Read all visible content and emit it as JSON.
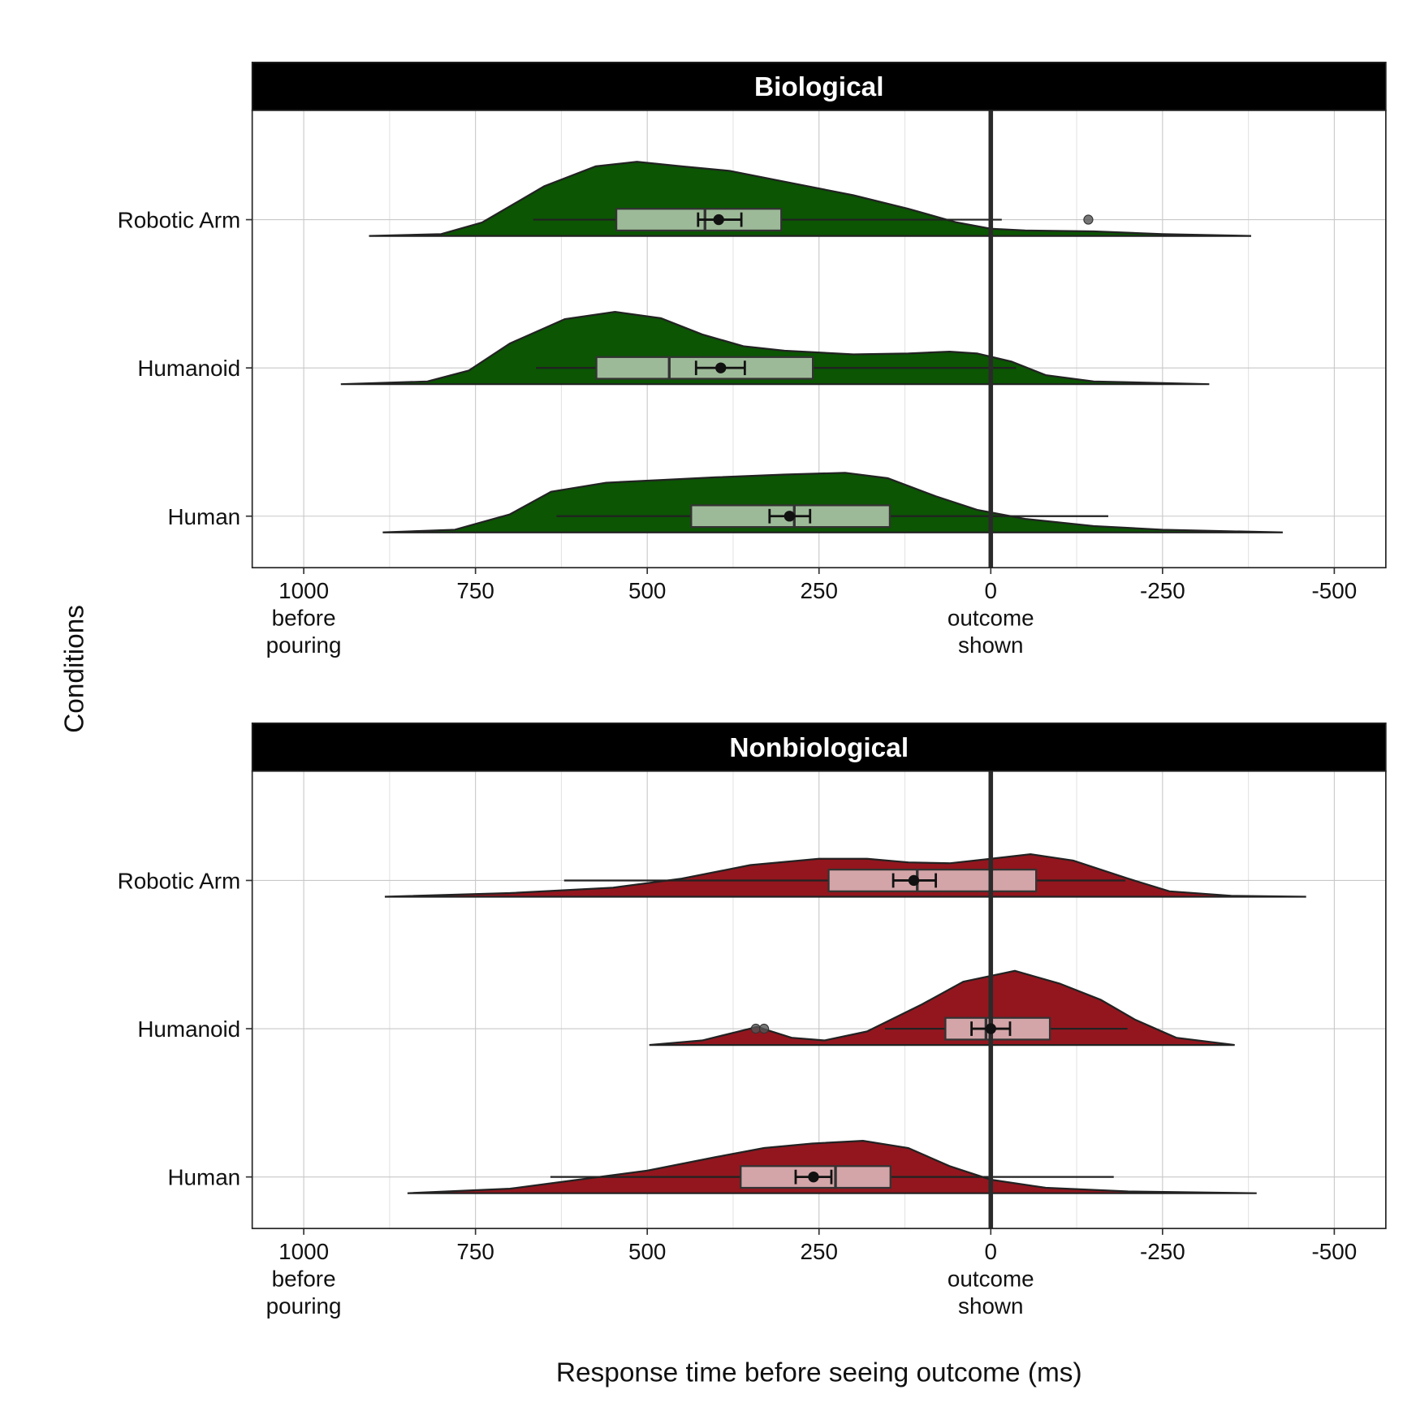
{
  "axis_labels": {
    "x": "Response time before seeing outcome (ms)",
    "y": "Conditions"
  },
  "chart_data": [
    {
      "type": "raincloud",
      "title": "Biological",
      "categories": [
        "Robotic Arm",
        "Humanoid",
        "Human"
      ],
      "fill": "#0b5503",
      "box_fill": "#9dba98",
      "xlim": [
        1075,
        -575
      ],
      "vline": 0,
      "grid": true,
      "xticks": [
        {
          "value": 1000,
          "label": "1000\nbefore\npouring"
        },
        750,
        500,
        250,
        {
          "value": 0,
          "label": "0\noutcome\nshown"
        },
        -250,
        -500
      ],
      "groups": [
        {
          "density_x": [
            905,
            800,
            740,
            650,
            575,
            515,
            450,
            380,
            300,
            200,
            120,
            50,
            0,
            -50,
            -150,
            -250,
            -379
          ],
          "density": [
            0,
            2,
            15,
            55,
            77,
            82,
            77,
            72,
            60,
            45,
            30,
            15,
            8,
            6,
            5,
            2,
            0
          ],
          "whisker_low": -16,
          "q1": 305,
          "median": 416,
          "q3": 545,
          "whisker_high": 666,
          "mean": 396,
          "mean_low": 363,
          "mean_high": 426,
          "outliers": [
            -142
          ]
        },
        {
          "density_x": [
            946,
            820,
            760,
            700,
            620,
            547,
            480,
            420,
            360,
            300,
            200,
            120,
            60,
            20,
            -30,
            -80,
            -150,
            -318
          ],
          "density": [
            0,
            3,
            15,
            45,
            72,
            80,
            73,
            55,
            42,
            37,
            33,
            34,
            36,
            34,
            25,
            10,
            3,
            0
          ],
          "whisker_low": -37,
          "q1": 259,
          "median": 468,
          "q3": 574,
          "whisker_high": 662,
          "mean": 393,
          "mean_low": 358,
          "mean_high": 429,
          "outliers": []
        },
        {
          "density_x": [
            885,
            780,
            700,
            640,
            560,
            480,
            400,
            300,
            212,
            150,
            80,
            20,
            -50,
            -150,
            -250,
            -425
          ],
          "density": [
            0,
            3,
            20,
            45,
            55,
            58,
            61,
            64,
            66,
            60,
            40,
            25,
            15,
            7,
            3,
            0
          ],
          "whisker_low": -171,
          "q1": 147,
          "median": 286,
          "q3": 436,
          "whisker_high": 632,
          "mean": 293,
          "mean_low": 263,
          "mean_high": 322,
          "outliers": []
        }
      ]
    },
    {
      "type": "raincloud",
      "title": "Nonbiological",
      "categories": [
        "Robotic Arm",
        "Humanoid",
        "Human"
      ],
      "fill": "#93161e",
      "box_fill": "#d4a5a8",
      "xlim": [
        1075,
        -575
      ],
      "vline": 0,
      "grid": true,
      "xticks": [
        {
          "value": 1000,
          "label": "1000\nbefore\npouring"
        },
        750,
        500,
        250,
        {
          "value": 0,
          "label": "0\noutcome\nshown"
        },
        -250,
        -500
      ],
      "groups": [
        {
          "density_x": [
            882,
            700,
            550,
            450,
            350,
            250,
            180,
            120,
            60,
            0,
            -58,
            -120,
            -200,
            -260,
            -350,
            -459
          ],
          "density": [
            0,
            4,
            10,
            20,
            35,
            42,
            42,
            38,
            37,
            42,
            47,
            40,
            20,
            6,
            1,
            0
          ],
          "whisker_low": -196,
          "q1": -66,
          "median": 107,
          "q3": 236,
          "whisker_high": 621,
          "mean": 112,
          "mean_low": 80,
          "mean_high": 142,
          "outliers": []
        },
        {
          "density_x": [
            497,
            420,
            340,
            290,
            242,
            180,
            100,
            40,
            -35,
            -100,
            -160,
            -210,
            -270,
            -355
          ],
          "density": [
            0,
            5,
            20,
            8,
            5,
            15,
            45,
            70,
            82,
            68,
            50,
            28,
            8,
            0
          ],
          "whisker_low": -199,
          "q1": -86,
          "median": 7,
          "q3": 66,
          "whisker_high": 154,
          "mean": 0,
          "mean_low": -28,
          "mean_high": 28,
          "outliers": [
            342,
            330
          ]
        },
        {
          "density_x": [
            849,
            700,
            600,
            500,
            400,
            330,
            260,
            186,
            120,
            60,
            0,
            -80,
            -200,
            -387
          ],
          "density": [
            0,
            5,
            15,
            25,
            40,
            50,
            55,
            58,
            50,
            30,
            15,
            6,
            2,
            0
          ],
          "whisker_low": -179,
          "q1": 146,
          "median": 226,
          "q3": 364,
          "whisker_high": 641,
          "mean": 258,
          "mean_low": 232,
          "mean_high": 284,
          "outliers": []
        }
      ]
    }
  ]
}
